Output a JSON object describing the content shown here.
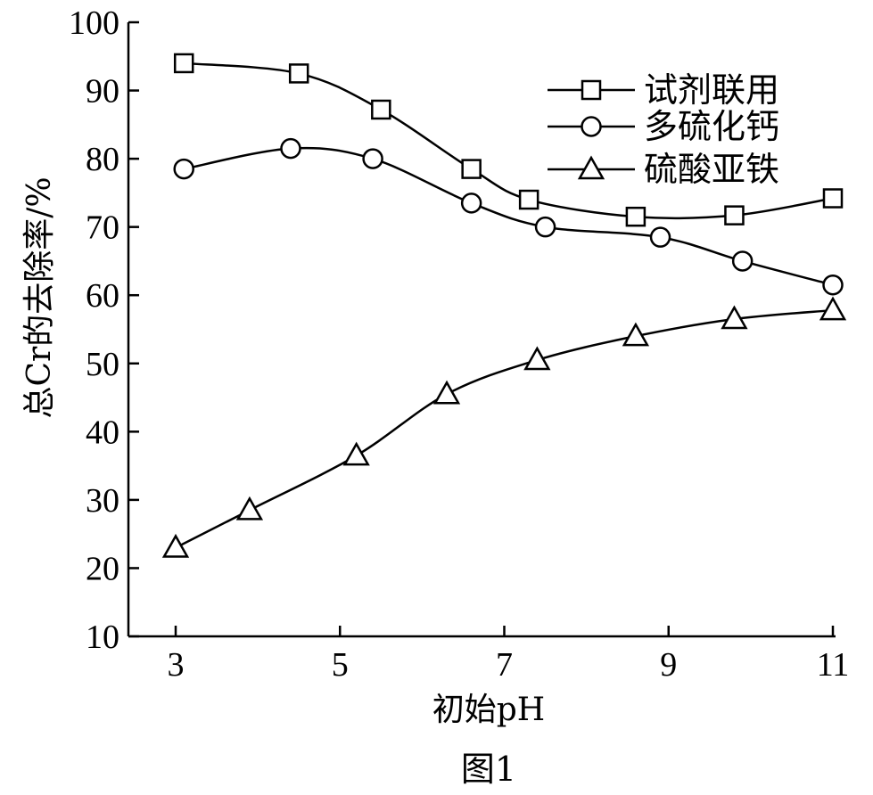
{
  "chart_data": {
    "type": "line",
    "xlabel": "初始pH",
    "ylabel": "总Cr的去除率/%",
    "caption": "图1",
    "xlim": [
      3,
      11
    ],
    "ylim": [
      10,
      100
    ],
    "xticks": [
      3,
      5,
      7,
      9,
      11
    ],
    "yticks": [
      10,
      20,
      30,
      40,
      50,
      60,
      70,
      80,
      90,
      100
    ],
    "legend_position": "top-right",
    "series": [
      {
        "name": "试剂联用",
        "marker": "square",
        "x": [
          3.1,
          4.5,
          5.5,
          6.6,
          7.3,
          8.6,
          9.8,
          11.0
        ],
        "y": [
          94,
          92.5,
          87.2,
          78.5,
          74,
          71.5,
          71.7,
          74.2
        ]
      },
      {
        "name": "多硫化钙",
        "marker": "circle",
        "x": [
          3.1,
          4.4,
          5.4,
          6.6,
          7.5,
          8.9,
          9.9,
          11.0
        ],
        "y": [
          78.5,
          81.5,
          80,
          73.5,
          70,
          68.5,
          65,
          61.5
        ]
      },
      {
        "name": "硫酸亚铁",
        "marker": "triangle",
        "x": [
          3.0,
          3.9,
          5.2,
          6.3,
          7.4,
          8.6,
          9.8,
          11.0
        ],
        "y": [
          23,
          28.5,
          36.5,
          45.5,
          50.5,
          54,
          56.5,
          57.8
        ]
      }
    ]
  }
}
